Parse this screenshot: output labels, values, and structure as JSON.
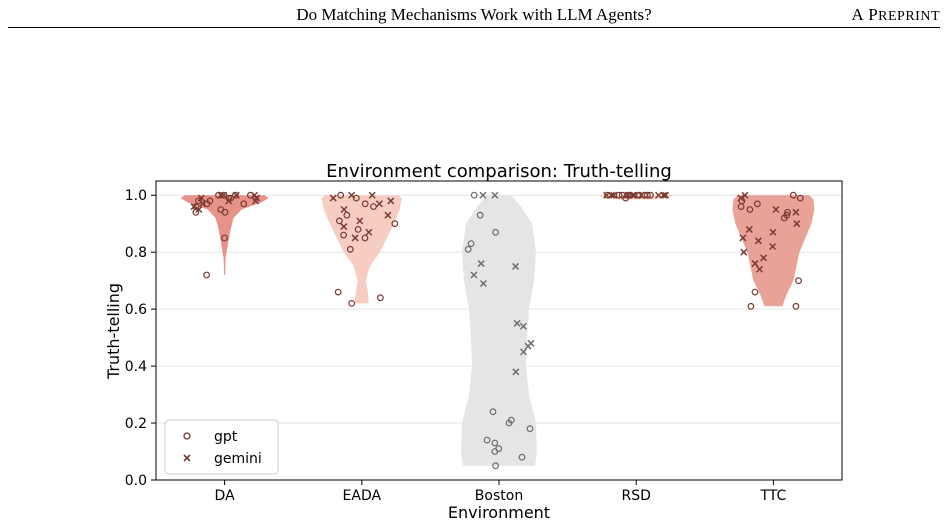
{
  "header": {
    "title": "Do Matching Mechanisms Work with LLM Agents?",
    "right_label": "A Preprint"
  },
  "chart_data": {
    "type": "violin",
    "title": "Environment comparison: Truth-telling",
    "xlabel": "Environment",
    "ylabel": "Truth-telling",
    "ylim": [
      0,
      1.05
    ],
    "yticks": [
      "0.0",
      "0.2",
      "0.4",
      "0.6",
      "0.8",
      "1.0"
    ],
    "grid": "horizontal",
    "legend": {
      "placement": "lower-left",
      "entries": [
        {
          "label": "gpt",
          "marker": "circle"
        },
        {
          "label": "gemini",
          "marker": "x"
        }
      ]
    },
    "colors": {
      "marker": "#7a3b33",
      "boston_marker": "#6e6e6e"
    },
    "categories": [
      {
        "name": "DA",
        "color": "#e8938a",
        "violin": [
          [
            0.72,
            0.5
          ],
          [
            0.78,
            1
          ],
          [
            0.84,
            4
          ],
          [
            0.88,
            6
          ],
          [
            0.92,
            9
          ],
          [
            0.95,
            17
          ],
          [
            0.975,
            37
          ],
          [
            0.99,
            44
          ],
          [
            1.0,
            40
          ]
        ],
        "gpt": [
          1.0,
          0.99,
          0.98,
          0.97,
          0.95,
          0.94,
          0.96,
          1.0,
          0.99,
          1.0,
          0.98,
          0.97,
          1.0,
          0.94,
          0.85,
          0.72
        ],
        "gemini": [
          1.0,
          0.99,
          0.98,
          1.0,
          0.97,
          0.96,
          1.0,
          0.99,
          0.95,
          1.0,
          0.98
        ]
      },
      {
        "name": "EADA",
        "color": "#f6cdc0",
        "violin": [
          [
            0.62,
            7
          ],
          [
            0.66,
            6
          ],
          [
            0.7,
            4
          ],
          [
            0.75,
            8
          ],
          [
            0.8,
            18
          ],
          [
            0.85,
            25
          ],
          [
            0.9,
            32
          ],
          [
            0.95,
            38
          ],
          [
            0.99,
            40
          ],
          [
            1.0,
            37
          ]
        ],
        "gpt": [
          1.0,
          0.99,
          0.97,
          0.96,
          0.93,
          0.91,
          0.9,
          0.88,
          0.86,
          0.85,
          0.81,
          0.66,
          0.64,
          0.62
        ],
        "gemini": [
          1.0,
          0.99,
          0.98,
          0.95,
          0.93,
          0.91,
          0.89,
          0.87,
          0.85,
          0.97,
          1.0
        ]
      },
      {
        "name": "Boston",
        "color": "#e5e5e5",
        "violin": [
          [
            0.05,
            36
          ],
          [
            0.1,
            38
          ],
          [
            0.2,
            37
          ],
          [
            0.3,
            30
          ],
          [
            0.4,
            27
          ],
          [
            0.5,
            28
          ],
          [
            0.6,
            30
          ],
          [
            0.7,
            35
          ],
          [
            0.8,
            37
          ],
          [
            0.9,
            33
          ],
          [
            0.96,
            22
          ],
          [
            1.0,
            12
          ]
        ],
        "gpt": [
          1.0,
          0.93,
          0.87,
          0.83,
          0.81,
          0.24,
          0.21,
          0.2,
          0.18,
          0.14,
          0.13,
          0.11,
          0.1,
          0.08,
          0.05
        ],
        "gemini": [
          1.0,
          1.0,
          0.76,
          0.75,
          0.72,
          0.69,
          0.55,
          0.54,
          0.48,
          0.47,
          0.45,
          0.38
        ]
      },
      {
        "name": "RSD",
        "color": "#f6cdc0",
        "violin": [
          [
            0.985,
            18
          ],
          [
            0.995,
            34
          ],
          [
            1.0,
            38
          ]
        ],
        "gpt": [
          1.0,
          1.0,
          1.0,
          0.99,
          1.0,
          1.0,
          1.0,
          1.0,
          1.0,
          1.0
        ],
        "gemini": [
          1.0,
          1.0,
          1.0,
          1.0,
          1.0,
          1.0,
          1.0,
          1.0,
          1.0,
          1.0,
          1.0,
          1.0
        ]
      },
      {
        "name": "TTC",
        "color": "#e8a298",
        "violin": [
          [
            0.61,
            9
          ],
          [
            0.65,
            13
          ],
          [
            0.7,
            20
          ],
          [
            0.75,
            23
          ],
          [
            0.8,
            26
          ],
          [
            0.85,
            32
          ],
          [
            0.9,
            38
          ],
          [
            0.95,
            41
          ],
          [
            0.985,
            40
          ],
          [
            1.0,
            36
          ]
        ],
        "gpt": [
          1.0,
          0.99,
          0.97,
          0.96,
          0.95,
          0.94,
          0.93,
          0.92,
          0.7,
          0.66,
          0.61,
          0.61,
          0.98
        ],
        "gemini": [
          1.0,
          0.99,
          0.95,
          0.94,
          0.9,
          0.88,
          0.87,
          0.85,
          0.84,
          0.82,
          0.8,
          0.78,
          0.76,
          0.74
        ]
      }
    ]
  }
}
